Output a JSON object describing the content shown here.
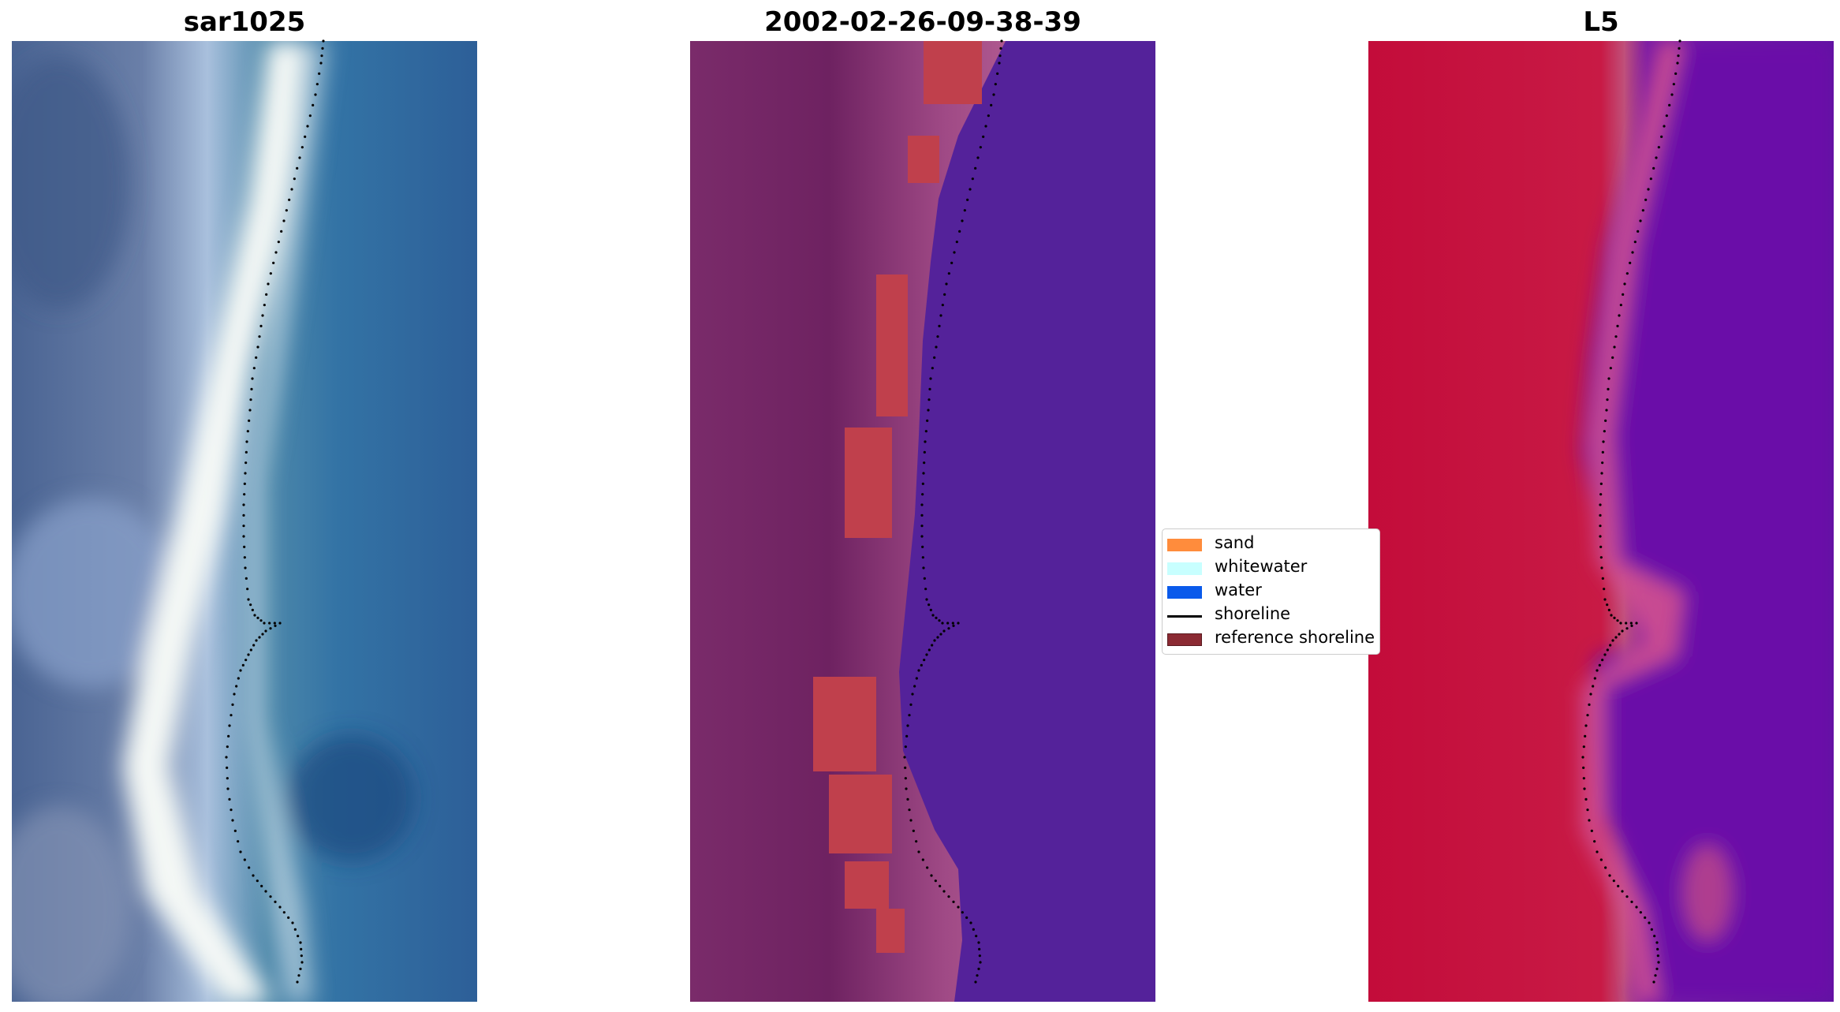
{
  "panels": [
    {
      "title": "sar1025"
    },
    {
      "title": "2002-02-26-09-38-39"
    },
    {
      "title": "L5"
    }
  ],
  "legend": {
    "items": [
      {
        "label": "sand",
        "kind": "patch",
        "color": "#ff8c3c"
      },
      {
        "label": "whitewater",
        "kind": "patch",
        "color": "#c8ffff"
      },
      {
        "label": "water",
        "kind": "patch",
        "color": "#0a5aeb"
      },
      {
        "label": "shoreline",
        "kind": "line",
        "color": "#000000"
      },
      {
        "label": "reference shoreline",
        "kind": "patch",
        "color": "#8b2a33"
      }
    ]
  },
  "colors": {
    "shoreline_dots": "#000000",
    "sar_water": "#2e6ca3",
    "sar_surf": "#f2f6f4",
    "class_water": "#54229a",
    "class_land": "#6e2261",
    "class_sand_overlay": "#c0404c",
    "l5_land": "#c80a3a",
    "l5_water": "#6a10a8"
  }
}
